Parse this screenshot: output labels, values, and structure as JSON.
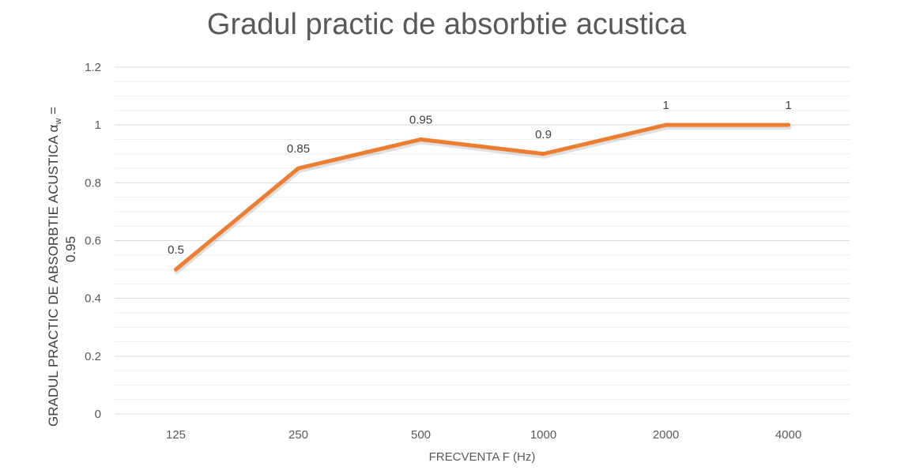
{
  "chart_data": {
    "type": "line",
    "title": "Gradul practic de absorbtie acustica",
    "xlabel": "FRECVENTA F (Hz)",
    "ylabel": {
      "line1_main": "GRADUL PRACTIC DE ABSORBTIE ACUSTICA α",
      "line1_sub": "w",
      "line1_tail": " =",
      "line2": "0.95"
    },
    "categories": [
      "125",
      "250",
      "500",
      "1000",
      "2000",
      "4000"
    ],
    "series": [
      {
        "values": [
          0.5,
          0.85,
          0.95,
          0.9,
          1,
          1
        ],
        "color": "#ED7D31"
      }
    ],
    "data_labels": [
      "0.5",
      "0.85",
      "0.95",
      "0.9",
      "1",
      "1"
    ],
    "ylim": [
      0,
      1.2
    ],
    "yticks": [
      "0",
      "0.2",
      "0.4",
      "0.6",
      "0.8",
      "1",
      "1.2"
    ],
    "grid": true,
    "legend": "none",
    "colors": {
      "line": "#ED7D31",
      "grid_major": "#D9D9D9",
      "grid_minor": "#EEEEEE",
      "text": "#595959"
    }
  }
}
